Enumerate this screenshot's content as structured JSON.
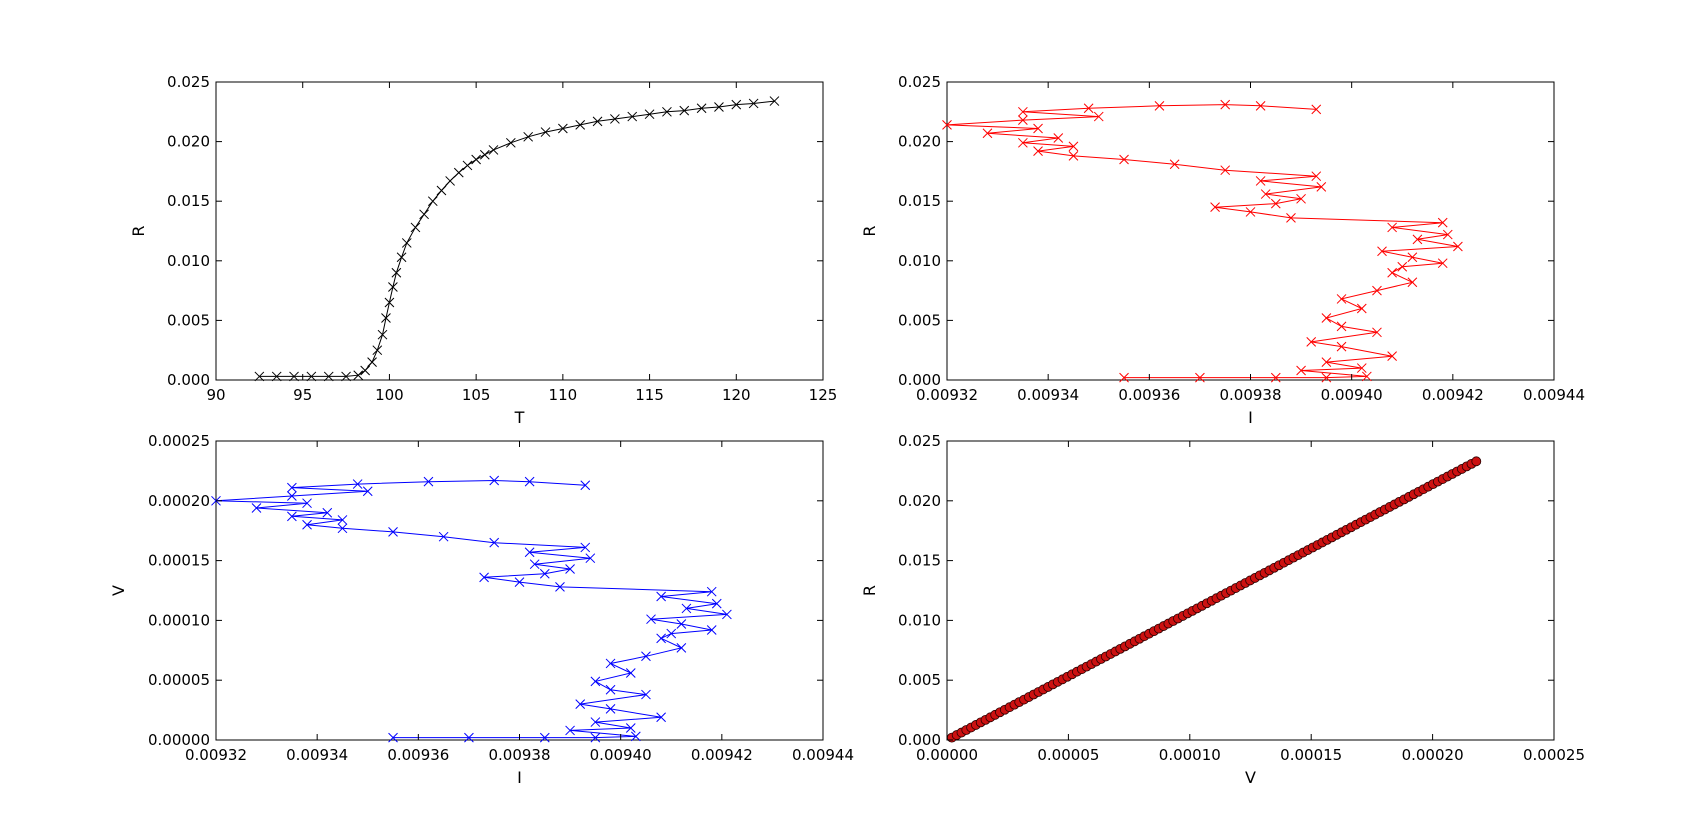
{
  "figure": {
    "background": "#ffffff"
  },
  "chart_data": [
    {
      "id": "RT",
      "type": "line",
      "xlabel": "T",
      "ylabel": "R",
      "xlim": [
        90,
        125
      ],
      "ylim": [
        0,
        0.025
      ],
      "xticks": [
        90,
        95,
        100,
        105,
        110,
        115,
        120,
        125
      ],
      "yticks": [
        0,
        0.005,
        0.01,
        0.015,
        0.02,
        0.025
      ],
      "xtick_labels": [
        "90",
        "95",
        "100",
        "105",
        "110",
        "115",
        "120",
        "125"
      ],
      "ytick_labels": [
        "0.000",
        "0.005",
        "0.010",
        "0.015",
        "0.020",
        "0.025"
      ],
      "grid": false,
      "series": [
        {
          "color": "#000000",
          "marker": "x",
          "x": [
            92.5,
            93.5,
            94.5,
            95.5,
            96.5,
            97.5,
            98.2,
            98.6,
            99.0,
            99.3,
            99.6,
            99.8,
            100.0,
            100.2,
            100.4,
            100.7,
            101.0,
            101.5,
            102.0,
            102.5,
            103.0,
            103.5,
            104.0,
            104.5,
            105.0,
            105.5,
            106.0,
            107.0,
            108.0,
            109.0,
            110.0,
            111.0,
            112.0,
            113.0,
            114.0,
            115.0,
            116.0,
            117.0,
            118.0,
            119.0,
            120.0,
            121.0,
            122.2
          ],
          "y": [
            0.0003,
            0.0003,
            0.0003,
            0.0003,
            0.0003,
            0.0003,
            0.0004,
            0.0008,
            0.0015,
            0.0025,
            0.0038,
            0.0052,
            0.0065,
            0.0078,
            0.009,
            0.0103,
            0.0115,
            0.0128,
            0.0139,
            0.015,
            0.0159,
            0.0167,
            0.0174,
            0.018,
            0.0185,
            0.0189,
            0.0193,
            0.0199,
            0.0204,
            0.0208,
            0.0211,
            0.0214,
            0.0217,
            0.0219,
            0.0221,
            0.0223,
            0.0225,
            0.0226,
            0.0228,
            0.0229,
            0.0231,
            0.0232,
            0.0234
          ]
        }
      ]
    },
    {
      "id": "RI",
      "type": "line",
      "xlabel": "I",
      "ylabel": "R",
      "xlim": [
        0.00932,
        0.00944
      ],
      "ylim": [
        0,
        0.025
      ],
      "xticks": [
        0.00932,
        0.00934,
        0.00936,
        0.00938,
        0.0094,
        0.00942,
        0.00944
      ],
      "yticks": [
        0,
        0.005,
        0.01,
        0.015,
        0.02,
        0.025
      ],
      "xtick_labels": [
        "0.00932",
        "0.00934",
        "0.00936",
        "0.00938",
        "0.00940",
        "0.00942",
        "0.00944"
      ],
      "ytick_labels": [
        "0.000",
        "0.005",
        "0.010",
        "0.015",
        "0.020",
        "0.025"
      ],
      "grid": false,
      "series": [
        {
          "color": "#ff0000",
          "marker": "x",
          "x": [
            0.009355,
            0.00937,
            0.009385,
            0.009395,
            0.009403,
            0.00939,
            0.009402,
            0.009395,
            0.009408,
            0.009398,
            0.009392,
            0.009405,
            0.009398,
            0.009395,
            0.009402,
            0.009398,
            0.009405,
            0.009412,
            0.009408,
            0.00941,
            0.009418,
            0.009412,
            0.009406,
            0.009421,
            0.009413,
            0.009419,
            0.009408,
            0.009418,
            0.009388,
            0.00938,
            0.009373,
            0.009385,
            0.00939,
            0.009383,
            0.009394,
            0.009382,
            0.009393,
            0.009375,
            0.009365,
            0.009355,
            0.009345,
            0.009338,
            0.009345,
            0.009335,
            0.009342,
            0.009328,
            0.009338,
            0.00932,
            0.009335,
            0.00935,
            0.009335,
            0.009348,
            0.009362,
            0.009375,
            0.009382,
            0.009393
          ],
          "y": [
            0.0002,
            0.0002,
            0.0002,
            0.0002,
            0.0003,
            0.0008,
            0.001,
            0.0015,
            0.002,
            0.0028,
            0.0032,
            0.004,
            0.0045,
            0.0052,
            0.006,
            0.0068,
            0.0075,
            0.0082,
            0.009,
            0.0095,
            0.0098,
            0.0103,
            0.0108,
            0.0112,
            0.0118,
            0.0122,
            0.0128,
            0.0132,
            0.0136,
            0.0141,
            0.0145,
            0.0148,
            0.0152,
            0.0156,
            0.0162,
            0.0167,
            0.0171,
            0.0176,
            0.0181,
            0.0185,
            0.0188,
            0.0192,
            0.0196,
            0.0199,
            0.0203,
            0.0207,
            0.0211,
            0.0214,
            0.0218,
            0.0221,
            0.0225,
            0.0228,
            0.023,
            0.0231,
            0.023,
            0.0227
          ]
        }
      ]
    },
    {
      "id": "VI",
      "type": "line",
      "xlabel": "I",
      "ylabel": "V",
      "xlim": [
        0.00932,
        0.00944
      ],
      "ylim": [
        0,
        0.00025
      ],
      "xticks": [
        0.00932,
        0.00934,
        0.00936,
        0.00938,
        0.0094,
        0.00942,
        0.00944
      ],
      "yticks": [
        0,
        5e-05,
        0.0001,
        0.00015,
        0.0002,
        0.00025
      ],
      "xtick_labels": [
        "0.00932",
        "0.00934",
        "0.00936",
        "0.00938",
        "0.00940",
        "0.00942",
        "0.00944"
      ],
      "ytick_labels": [
        "0.00000",
        "0.00005",
        "0.00010",
        "0.00015",
        "0.00020",
        "0.00025"
      ],
      "grid": false,
      "series": [
        {
          "color": "#0000ff",
          "marker": "x",
          "x": [
            0.009355,
            0.00937,
            0.009385,
            0.009395,
            0.009403,
            0.00939,
            0.009402,
            0.009395,
            0.009408,
            0.009398,
            0.009392,
            0.009405,
            0.009398,
            0.009395,
            0.009402,
            0.009398,
            0.009405,
            0.009412,
            0.009408,
            0.00941,
            0.009418,
            0.009412,
            0.009406,
            0.009421,
            0.009413,
            0.009419,
            0.009408,
            0.009418,
            0.009388,
            0.00938,
            0.009373,
            0.009385,
            0.00939,
            0.009383,
            0.009394,
            0.009382,
            0.009393,
            0.009375,
            0.009365,
            0.009355,
            0.009345,
            0.009338,
            0.009345,
            0.009335,
            0.009342,
            0.009328,
            0.009338,
            0.00932,
            0.009335,
            0.00935,
            0.009335,
            0.009348,
            0.009362,
            0.009375,
            0.009382,
            0.009393
          ],
          "y": [
            2e-06,
            2e-06,
            2e-06,
            2e-06,
            3e-06,
            8e-06,
            1e-05,
            1.5e-05,
            1.9e-05,
            2.6e-05,
            3e-05,
            3.8e-05,
            4.2e-05,
            4.9e-05,
            5.6e-05,
            6.4e-05,
            7e-05,
            7.7e-05,
            8.5e-05,
            8.9e-05,
            9.2e-05,
            9.7e-05,
            0.000101,
            0.000105,
            0.00011,
            0.000114,
            0.00012,
            0.000124,
            0.000128,
            0.000132,
            0.000136,
            0.000139,
            0.000143,
            0.000147,
            0.000152,
            0.000157,
            0.000161,
            0.000165,
            0.00017,
            0.000174,
            0.000177,
            0.00018,
            0.000184,
            0.000187,
            0.00019,
            0.000194,
            0.000198,
            0.0002,
            0.000204,
            0.000208,
            0.000211,
            0.000214,
            0.000216,
            0.000217,
            0.000216,
            0.000213
          ]
        }
      ]
    },
    {
      "id": "RV",
      "type": "line",
      "xlabel": "V",
      "ylabel": "R",
      "xlim": [
        0,
        0.00025
      ],
      "ylim": [
        0,
        0.025
      ],
      "xticks": [
        0,
        5e-05,
        0.0001,
        0.00015,
        0.0002,
        0.00025
      ],
      "yticks": [
        0,
        0.005,
        0.01,
        0.015,
        0.02,
        0.025
      ],
      "xtick_labels": [
        "0.00000",
        "0.00005",
        "0.00010",
        "0.00015",
        "0.00020",
        "0.00025"
      ],
      "ytick_labels": [
        "0.000",
        "0.005",
        "0.010",
        "0.015",
        "0.020",
        "0.025"
      ],
      "grid": false,
      "series": [
        {
          "color": "#cc1111",
          "marker": "o",
          "x_range": [
            2e-06,
            0.000218
          ],
          "y_range": [
            0.0002,
            0.0233
          ],
          "points": 110
        }
      ]
    }
  ]
}
